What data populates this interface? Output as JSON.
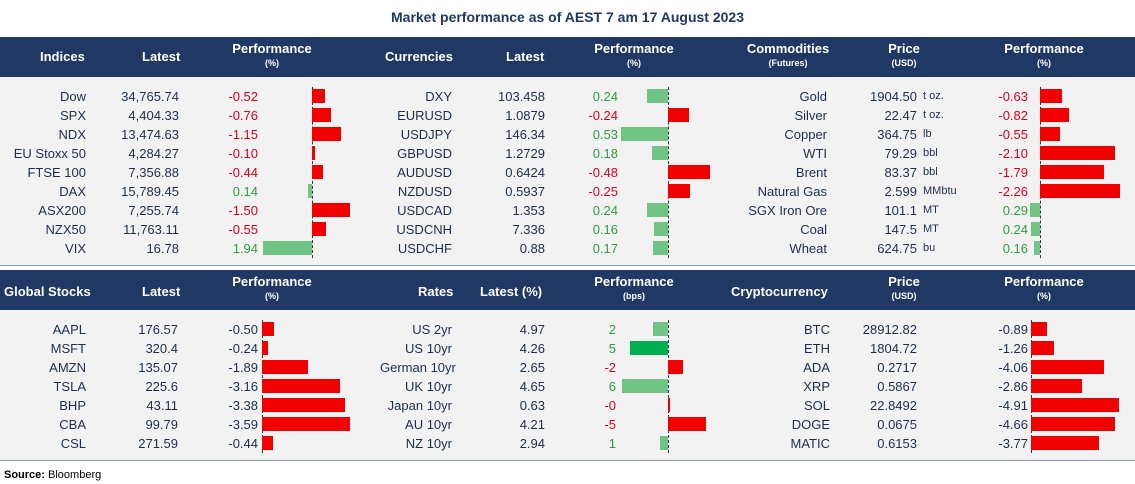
{
  "title": "Market performance as of AEST 7 am 17 August 2023",
  "source_label": "Source:",
  "source_value": "Bloomberg",
  "colors": {
    "header_bg": "#1f3864",
    "pos_bar": "#70c484",
    "neg_bar": "#f00000",
    "pos_text": "#2e9e3e",
    "neg_text": "#e0001b"
  },
  "headers_top": {
    "indices": "Indices",
    "latest": "Latest",
    "performance": "Performance",
    "pct": "(%)",
    "currencies": "Currencies",
    "cur_latest": "Latest",
    "cur_performance": "Performance",
    "cur_pct": "(%)",
    "commodities": "Commodities",
    "futures": "(Futures)",
    "price": "Price",
    "usd": "(USD)",
    "com_performance": "Performance",
    "com_pct": "(%)"
  },
  "headers_bottom": {
    "global_stocks": "Global Stocks",
    "latest": "Latest",
    "performance": "Performance",
    "pct": "(%)",
    "rates": "Rates",
    "latest_pct": "Latest (%)",
    "rate_performance": "Performance",
    "bps": "(bps)",
    "crypto": "Cryptocurrency",
    "price": "Price",
    "usd": "(USD)",
    "cry_performance": "Performance",
    "cry_pct": "(%)"
  },
  "indices": [
    {
      "name": "Dow",
      "latest": "34,765.74",
      "perf": "-0.52",
      "v": -0.52
    },
    {
      "name": "SPX",
      "latest": "4,404.33",
      "perf": "-0.76",
      "v": -0.76
    },
    {
      "name": "NDX",
      "latest": "13,474.63",
      "perf": "-1.15",
      "v": -1.15
    },
    {
      "name": "EU Stoxx 50",
      "latest": "4,284.27",
      "perf": "-0.10",
      "v": -0.1
    },
    {
      "name": "FTSE 100",
      "latest": "7,356.88",
      "perf": "-0.44",
      "v": -0.44
    },
    {
      "name": "DAX",
      "latest": "15,789.45",
      "perf": "0.14",
      "v": 0.14
    },
    {
      "name": "ASX200",
      "latest": "7,255.74",
      "perf": "-1.50",
      "v": -1.5
    },
    {
      "name": "NZX50",
      "latest": "11,763.11",
      "perf": "-0.55",
      "v": -0.55
    },
    {
      "name": "VIX",
      "latest": "16.78",
      "perf": "1.94",
      "v": 1.94
    }
  ],
  "currencies": [
    {
      "name": "DXY",
      "latest": "103.458",
      "perf": "0.24",
      "v": 0.24
    },
    {
      "name": "EURUSD",
      "latest": "1.0879",
      "perf": "-0.24",
      "v": -0.24
    },
    {
      "name": "USDJPY",
      "latest": "146.34",
      "perf": "0.53",
      "v": 0.53
    },
    {
      "name": "GBPUSD",
      "latest": "1.2729",
      "perf": "0.18",
      "v": 0.18
    },
    {
      "name": "AUDUSD",
      "latest": "0.6424",
      "perf": "-0.48",
      "v": -0.48
    },
    {
      "name": "NZDUSD",
      "latest": "0.5937",
      "perf": "-0.25",
      "v": -0.25
    },
    {
      "name": "USDCAD",
      "latest": "1.353",
      "perf": "0.24",
      "v": 0.24
    },
    {
      "name": "USDCNH",
      "latest": "7.336",
      "perf": "0.16",
      "v": 0.16
    },
    {
      "name": "USDCHF",
      "latest": "0.88",
      "perf": "0.17",
      "v": 0.17
    }
  ],
  "commodities": [
    {
      "name": "Gold",
      "price": "1904.50",
      "unit": "t oz.",
      "perf": "-0.63",
      "v": -0.63
    },
    {
      "name": "Silver",
      "price": "22.47",
      "unit": "t oz.",
      "perf": "-0.82",
      "v": -0.82
    },
    {
      "name": "Copper",
      "price": "364.75",
      "unit": "lb",
      "perf": "-0.55",
      "v": -0.55
    },
    {
      "name": "WTI",
      "price": "79.29",
      "unit": "bbl",
      "perf": "-2.10",
      "v": -2.1
    },
    {
      "name": "Brent",
      "price": "83.37",
      "unit": "bbl",
      "perf": "-1.79",
      "v": -1.79
    },
    {
      "name": "Natural Gas",
      "price": "2.599",
      "unit": "MMbtu",
      "perf": "-2.26",
      "v": -2.26
    },
    {
      "name": "SGX Iron Ore",
      "price": "101.1",
      "unit": "MT",
      "perf": "0.29",
      "v": 0.29
    },
    {
      "name": "Coal",
      "price": "147.5",
      "unit": "MT",
      "perf": "0.24",
      "v": 0.24
    },
    {
      "name": "Wheat",
      "price": "624.75",
      "unit": "bu",
      "perf": "0.16",
      "v": 0.16
    }
  ],
  "global_stocks": [
    {
      "name": "AAPL",
      "latest": "176.57",
      "perf": "-0.50",
      "v": -0.5
    },
    {
      "name": "MSFT",
      "latest": "320.4",
      "perf": "-0.24",
      "v": -0.24
    },
    {
      "name": "AMZN",
      "latest": "135.07",
      "perf": "-1.89",
      "v": -1.89
    },
    {
      "name": "TSLA",
      "latest": "225.6",
      "perf": "-3.16",
      "v": -3.16
    },
    {
      "name": "BHP",
      "latest": "43.11",
      "perf": "-3.38",
      "v": -3.38
    },
    {
      "name": "CBA",
      "latest": "99.79",
      "perf": "-3.59",
      "v": -3.59
    },
    {
      "name": "CSL",
      "latest": "271.59",
      "perf": "-0.44",
      "v": -0.44
    }
  ],
  "rates": [
    {
      "name": "US 2yr",
      "latest": "4.97",
      "perf": "2",
      "v": 2,
      "bar_color": "#70c484"
    },
    {
      "name": "US 10yr",
      "latest": "4.26",
      "perf": "5",
      "v": 5,
      "bar_color": "#00b050"
    },
    {
      "name": "German 10yr",
      "latest": "2.65",
      "perf": "-2",
      "v": -2,
      "bar_color": "#f00000"
    },
    {
      "name": "UK 10yr",
      "latest": "4.65",
      "perf": "6",
      "v": 6,
      "bar_color": "#70c484"
    },
    {
      "name": "Japan 10yr",
      "latest": "0.63",
      "perf": "-0",
      "v": -0.2,
      "bar_color": "#f00000"
    },
    {
      "name": "AU 10yr",
      "latest": "4.21",
      "perf": "-5",
      "v": -5,
      "bar_color": "#f00000"
    },
    {
      "name": "NZ 10yr",
      "latest": "2.94",
      "perf": "1",
      "v": 1,
      "bar_color": "#70c484"
    }
  ],
  "crypto": [
    {
      "name": "BTC",
      "price": "28912.82",
      "perf": "-0.89",
      "v": -0.89
    },
    {
      "name": "ETH",
      "price": "1804.72",
      "perf": "-1.26",
      "v": -1.26
    },
    {
      "name": "ADA",
      "price": "0.2717",
      "perf": "-4.06",
      "v": -4.06
    },
    {
      "name": "XRP",
      "price": "0.5867",
      "perf": "-2.86",
      "v": -2.86
    },
    {
      "name": "SOL",
      "price": "22.8492",
      "perf": "-4.91",
      "v": -4.91
    },
    {
      "name": "DOGE",
      "price": "0.0675",
      "perf": "-4.66",
      "v": -4.66
    },
    {
      "name": "MATIC",
      "price": "0.6153",
      "perf": "-3.77",
      "v": -3.77
    }
  ]
}
